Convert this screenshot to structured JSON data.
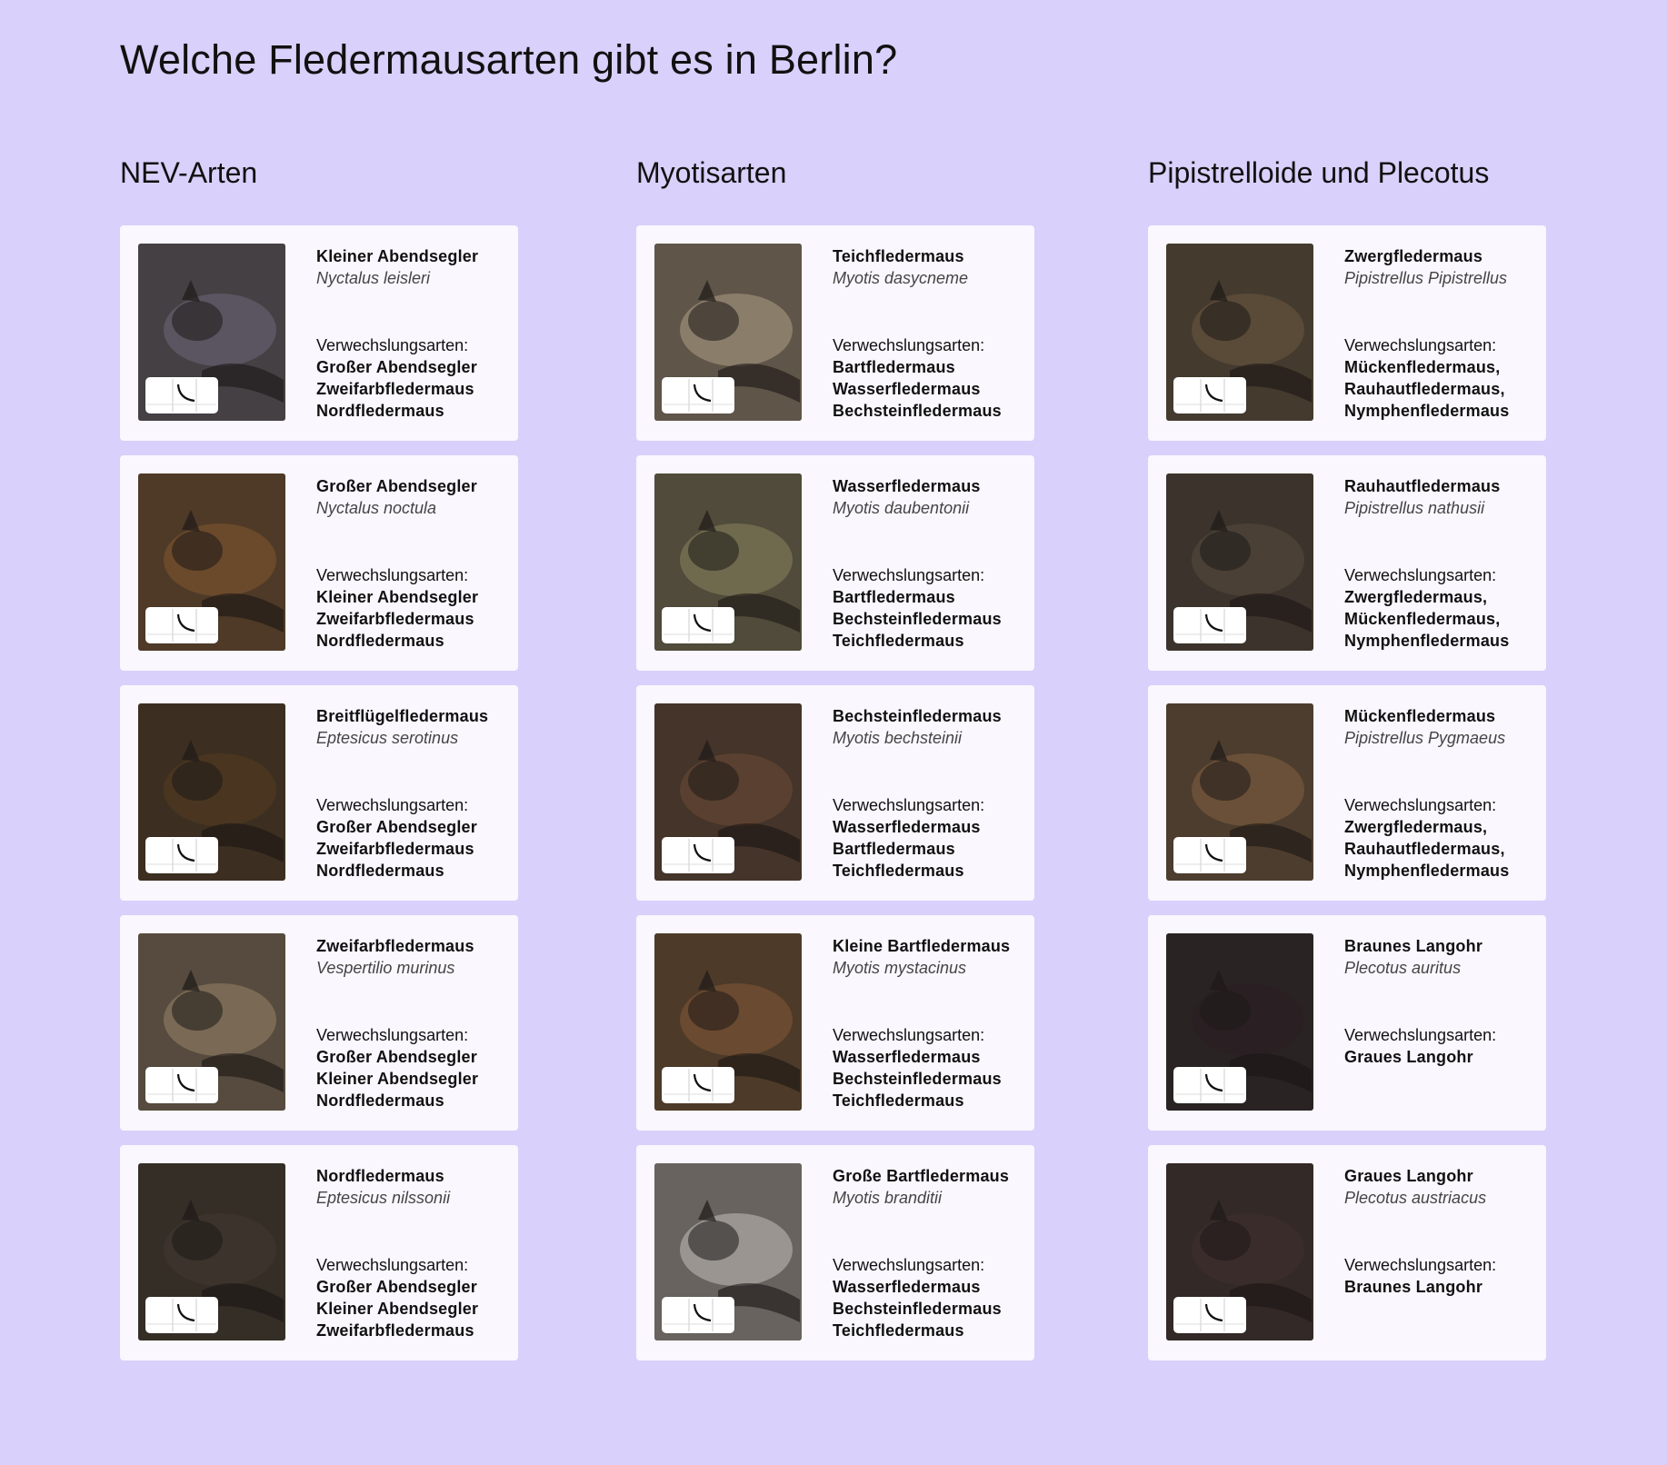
{
  "title": "Welche Fledermausarten gibt es in Berlin?",
  "confusion_label": "Verwechslungsarten:",
  "columns": [
    {
      "heading": "NEV-Arten",
      "cards": [
        {
          "name": "Kleiner Abendsegler",
          "latin": "Nyctalus leisleri",
          "confusions": [
            "Großer Abendsegler",
            "Zweifarbfledermaus",
            "Nordfledermaus"
          ],
          "tone": "#5a5560"
        },
        {
          "name": "Großer Abendsegler",
          "latin": "Nyctalus noctula",
          "confusions": [
            "Kleiner Abendsegler",
            "Zweifarbfledermaus",
            "Nordfledermaus"
          ],
          "tone": "#6b4a2c"
        },
        {
          "name": "Breitflügelfledermaus",
          "latin": "Eptesicus serotinus",
          "confusions": [
            "Großer Abendsegler",
            "Zweifarbfledermaus",
            "Nordfledermaus"
          ],
          "tone": "#4a3620"
        },
        {
          "name": "Zweifarbfledermaus",
          "latin": "Vespertilio murinus",
          "confusions": [
            "Großer Abendsegler",
            "Kleiner Abendsegler",
            "Nordfledermaus"
          ],
          "tone": "#7a6a55"
        },
        {
          "name": "Nordfledermaus",
          "latin": "Eptesicus nilssonii",
          "confusions": [
            "Großer Abendsegler",
            "Kleiner Abendsegler",
            "Zweifarbfledermaus"
          ],
          "tone": "#3c342c"
        }
      ]
    },
    {
      "heading": "Myotisarten",
      "cards": [
        {
          "name": "Teichfledermaus",
          "latin": "Myotis dasycneme",
          "confusions": [
            "Bartfledermaus",
            "Wasserfledermaus",
            "Bechsteinfledermaus"
          ],
          "tone": "#8a7d6a"
        },
        {
          "name": "Wasserfledermaus",
          "latin": "Myotis daubentonii",
          "confusions": [
            "Bartfledermaus",
            "Bechsteinfledermaus",
            "Teichfledermaus"
          ],
          "tone": "#6f6a4e"
        },
        {
          "name": "Bechsteinfledermaus",
          "latin": "Myotis bechsteinii",
          "confusions": [
            "Wasserfledermaus",
            "Bartfledermaus",
            "Teichfledermaus"
          ],
          "tone": "#5a4030"
        },
        {
          "name": "Kleine Bartfledermaus",
          "latin": "Myotis mystacinus",
          "confusions": [
            "Wasserfledermaus",
            "Bechsteinfledermaus",
            "Teichfledermaus"
          ],
          "tone": "#6a4a30"
        },
        {
          "name": "Große Bartfledermaus",
          "latin": "Myotis branditii",
          "confusions": [
            "Wasserfledermaus",
            "Bechsteinfledermaus",
            "Teichfledermaus"
          ],
          "tone": "#9a9590"
        }
      ]
    },
    {
      "heading": "Pipistrelloide und Plecotus",
      "cards": [
        {
          "name": "Zwergfledermaus",
          "latin": "Pipistrellus Pipistrellus",
          "confusions": [
            "Mückenfledermaus,",
            "Rauhautfledermaus,",
            "Nymphenfledermaus"
          ],
          "tone": "#5a4a38"
        },
        {
          "name": "Rauhautfledermaus",
          "latin": "Pipistrellus nathusii",
          "confusions": [
            "Zwergfledermaus,",
            "Mückenfledermaus,",
            "Nymphenfledermaus"
          ],
          "tone": "#4a4035"
        },
        {
          "name": "Mückenfledermaus",
          "latin": "Pipistrellus Pygmaeus",
          "confusions": [
            "Zwergfledermaus,",
            "Rauhautfledermaus,",
            "Nymphenfledermaus"
          ],
          "tone": "#6a5038"
        },
        {
          "name": "Braunes Langohr",
          "latin": "Plecotus auritus",
          "confusions": [
            "Graues Langohr"
          ],
          "tone": "#2a2024"
        },
        {
          "name": "Graues Langohr",
          "latin": "Plecotus austriacus",
          "confusions": [
            "Braunes Langohr"
          ],
          "tone": "#3a2c2a"
        }
      ]
    }
  ]
}
